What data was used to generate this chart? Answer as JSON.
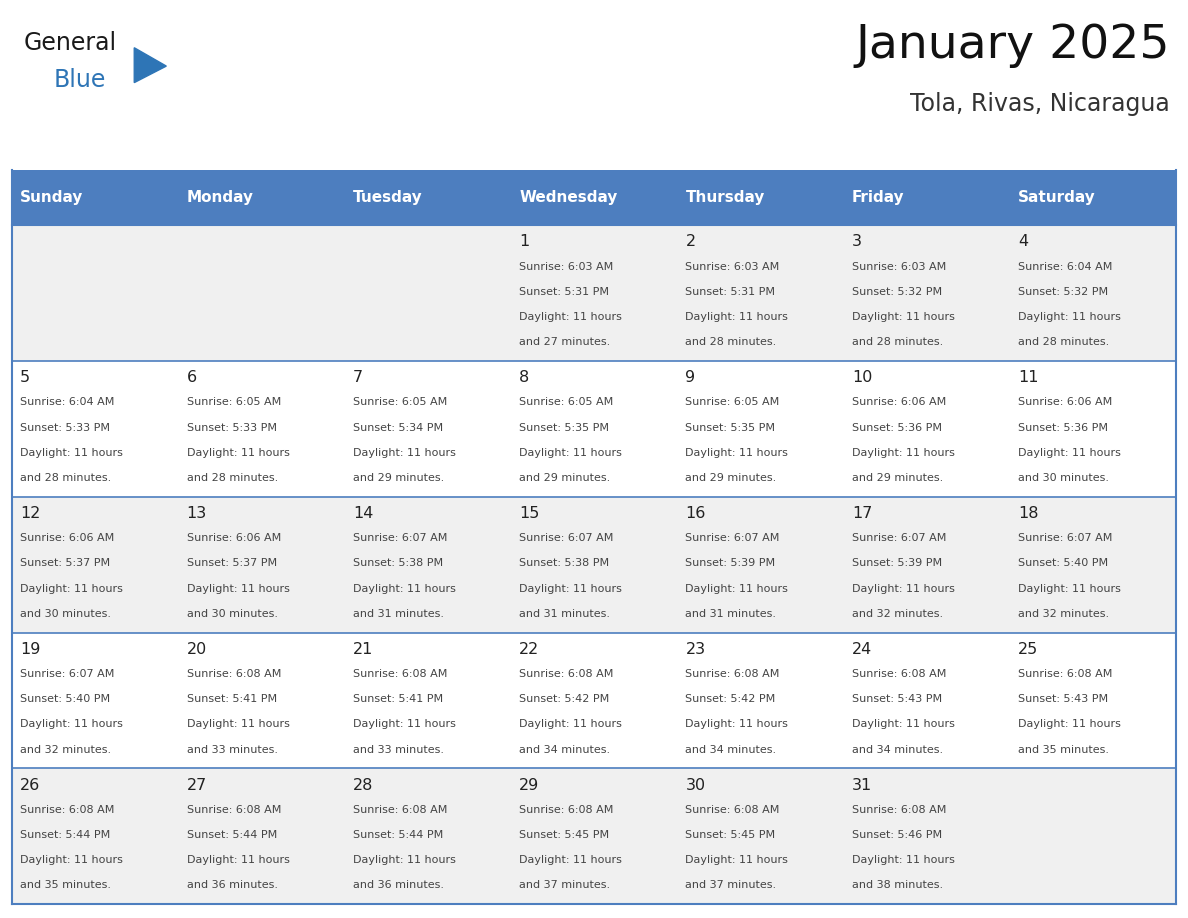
{
  "title": "January 2025",
  "subtitle": "Tola, Rivas, Nicaragua",
  "days_of_week": [
    "Sunday",
    "Monday",
    "Tuesday",
    "Wednesday",
    "Thursday",
    "Friday",
    "Saturday"
  ],
  "header_bg": "#4d7ebf",
  "header_text": "#FFFFFF",
  "row_bg": [
    "#f0f0f0",
    "#ffffff",
    "#f0f0f0",
    "#ffffff",
    "#f0f0f0"
  ],
  "grid_color": "#4d7ebf",
  "text_color": "#444444",
  "day_num_color": "#222222",
  "logo_general_color": "#1a1a1a",
  "logo_blue_color": "#2E75B6",
  "calendar_data": [
    [
      {
        "day": null,
        "sunrise": null,
        "sunset": null,
        "daylight_line1": null,
        "daylight_line2": null
      },
      {
        "day": null,
        "sunrise": null,
        "sunset": null,
        "daylight_line1": null,
        "daylight_line2": null
      },
      {
        "day": null,
        "sunrise": null,
        "sunset": null,
        "daylight_line1": null,
        "daylight_line2": null
      },
      {
        "day": "1",
        "sunrise": "Sunrise: 6:03 AM",
        "sunset": "Sunset: 5:31 PM",
        "daylight_line1": "Daylight: 11 hours",
        "daylight_line2": "and 27 minutes."
      },
      {
        "day": "2",
        "sunrise": "Sunrise: 6:03 AM",
        "sunset": "Sunset: 5:31 PM",
        "daylight_line1": "Daylight: 11 hours",
        "daylight_line2": "and 28 minutes."
      },
      {
        "day": "3",
        "sunrise": "Sunrise: 6:03 AM",
        "sunset": "Sunset: 5:32 PM",
        "daylight_line1": "Daylight: 11 hours",
        "daylight_line2": "and 28 minutes."
      },
      {
        "day": "4",
        "sunrise": "Sunrise: 6:04 AM",
        "sunset": "Sunset: 5:32 PM",
        "daylight_line1": "Daylight: 11 hours",
        "daylight_line2": "and 28 minutes."
      }
    ],
    [
      {
        "day": "5",
        "sunrise": "Sunrise: 6:04 AM",
        "sunset": "Sunset: 5:33 PM",
        "daylight_line1": "Daylight: 11 hours",
        "daylight_line2": "and 28 minutes."
      },
      {
        "day": "6",
        "sunrise": "Sunrise: 6:05 AM",
        "sunset": "Sunset: 5:33 PM",
        "daylight_line1": "Daylight: 11 hours",
        "daylight_line2": "and 28 minutes."
      },
      {
        "day": "7",
        "sunrise": "Sunrise: 6:05 AM",
        "sunset": "Sunset: 5:34 PM",
        "daylight_line1": "Daylight: 11 hours",
        "daylight_line2": "and 29 minutes."
      },
      {
        "day": "8",
        "sunrise": "Sunrise: 6:05 AM",
        "sunset": "Sunset: 5:35 PM",
        "daylight_line1": "Daylight: 11 hours",
        "daylight_line2": "and 29 minutes."
      },
      {
        "day": "9",
        "sunrise": "Sunrise: 6:05 AM",
        "sunset": "Sunset: 5:35 PM",
        "daylight_line1": "Daylight: 11 hours",
        "daylight_line2": "and 29 minutes."
      },
      {
        "day": "10",
        "sunrise": "Sunrise: 6:06 AM",
        "sunset": "Sunset: 5:36 PM",
        "daylight_line1": "Daylight: 11 hours",
        "daylight_line2": "and 29 minutes."
      },
      {
        "day": "11",
        "sunrise": "Sunrise: 6:06 AM",
        "sunset": "Sunset: 5:36 PM",
        "daylight_line1": "Daylight: 11 hours",
        "daylight_line2": "and 30 minutes."
      }
    ],
    [
      {
        "day": "12",
        "sunrise": "Sunrise: 6:06 AM",
        "sunset": "Sunset: 5:37 PM",
        "daylight_line1": "Daylight: 11 hours",
        "daylight_line2": "and 30 minutes."
      },
      {
        "day": "13",
        "sunrise": "Sunrise: 6:06 AM",
        "sunset": "Sunset: 5:37 PM",
        "daylight_line1": "Daylight: 11 hours",
        "daylight_line2": "and 30 minutes."
      },
      {
        "day": "14",
        "sunrise": "Sunrise: 6:07 AM",
        "sunset": "Sunset: 5:38 PM",
        "daylight_line1": "Daylight: 11 hours",
        "daylight_line2": "and 31 minutes."
      },
      {
        "day": "15",
        "sunrise": "Sunrise: 6:07 AM",
        "sunset": "Sunset: 5:38 PM",
        "daylight_line1": "Daylight: 11 hours",
        "daylight_line2": "and 31 minutes."
      },
      {
        "day": "16",
        "sunrise": "Sunrise: 6:07 AM",
        "sunset": "Sunset: 5:39 PM",
        "daylight_line1": "Daylight: 11 hours",
        "daylight_line2": "and 31 minutes."
      },
      {
        "day": "17",
        "sunrise": "Sunrise: 6:07 AM",
        "sunset": "Sunset: 5:39 PM",
        "daylight_line1": "Daylight: 11 hours",
        "daylight_line2": "and 32 minutes."
      },
      {
        "day": "18",
        "sunrise": "Sunrise: 6:07 AM",
        "sunset": "Sunset: 5:40 PM",
        "daylight_line1": "Daylight: 11 hours",
        "daylight_line2": "and 32 minutes."
      }
    ],
    [
      {
        "day": "19",
        "sunrise": "Sunrise: 6:07 AM",
        "sunset": "Sunset: 5:40 PM",
        "daylight_line1": "Daylight: 11 hours",
        "daylight_line2": "and 32 minutes."
      },
      {
        "day": "20",
        "sunrise": "Sunrise: 6:08 AM",
        "sunset": "Sunset: 5:41 PM",
        "daylight_line1": "Daylight: 11 hours",
        "daylight_line2": "and 33 minutes."
      },
      {
        "day": "21",
        "sunrise": "Sunrise: 6:08 AM",
        "sunset": "Sunset: 5:41 PM",
        "daylight_line1": "Daylight: 11 hours",
        "daylight_line2": "and 33 minutes."
      },
      {
        "day": "22",
        "sunrise": "Sunrise: 6:08 AM",
        "sunset": "Sunset: 5:42 PM",
        "daylight_line1": "Daylight: 11 hours",
        "daylight_line2": "and 34 minutes."
      },
      {
        "day": "23",
        "sunrise": "Sunrise: 6:08 AM",
        "sunset": "Sunset: 5:42 PM",
        "daylight_line1": "Daylight: 11 hours",
        "daylight_line2": "and 34 minutes."
      },
      {
        "day": "24",
        "sunrise": "Sunrise: 6:08 AM",
        "sunset": "Sunset: 5:43 PM",
        "daylight_line1": "Daylight: 11 hours",
        "daylight_line2": "and 34 minutes."
      },
      {
        "day": "25",
        "sunrise": "Sunrise: 6:08 AM",
        "sunset": "Sunset: 5:43 PM",
        "daylight_line1": "Daylight: 11 hours",
        "daylight_line2": "and 35 minutes."
      }
    ],
    [
      {
        "day": "26",
        "sunrise": "Sunrise: 6:08 AM",
        "sunset": "Sunset: 5:44 PM",
        "daylight_line1": "Daylight: 11 hours",
        "daylight_line2": "and 35 minutes."
      },
      {
        "day": "27",
        "sunrise": "Sunrise: 6:08 AM",
        "sunset": "Sunset: 5:44 PM",
        "daylight_line1": "Daylight: 11 hours",
        "daylight_line2": "and 36 minutes."
      },
      {
        "day": "28",
        "sunrise": "Sunrise: 6:08 AM",
        "sunset": "Sunset: 5:44 PM",
        "daylight_line1": "Daylight: 11 hours",
        "daylight_line2": "and 36 minutes."
      },
      {
        "day": "29",
        "sunrise": "Sunrise: 6:08 AM",
        "sunset": "Sunset: 5:45 PM",
        "daylight_line1": "Daylight: 11 hours",
        "daylight_line2": "and 37 minutes."
      },
      {
        "day": "30",
        "sunrise": "Sunrise: 6:08 AM",
        "sunset": "Sunset: 5:45 PM",
        "daylight_line1": "Daylight: 11 hours",
        "daylight_line2": "and 37 minutes."
      },
      {
        "day": "31",
        "sunrise": "Sunrise: 6:08 AM",
        "sunset": "Sunset: 5:46 PM",
        "daylight_line1": "Daylight: 11 hours",
        "daylight_line2": "and 38 minutes."
      },
      {
        "day": null,
        "sunrise": null,
        "sunset": null,
        "daylight_line1": null,
        "daylight_line2": null
      }
    ]
  ],
  "fig_width": 11.88,
  "fig_height": 9.18,
  "dpi": 100
}
